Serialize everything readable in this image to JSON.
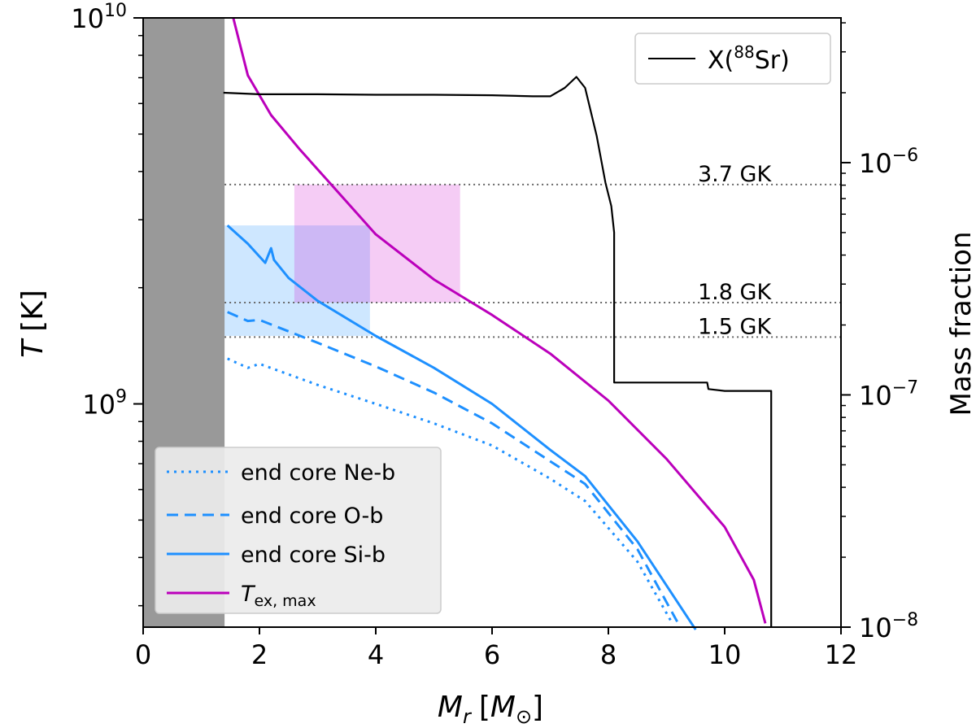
{
  "chart_data": {
    "type": "line",
    "xlabel_symbol": "M",
    "xlabel_sub": "r",
    "xlabel_unit_open": "[",
    "xlabel_unit": "M",
    "xlabel_unit_sub": "⊙",
    "xlabel_unit_close": "]",
    "ylabel_symbol": "T",
    "ylabel_unit": "[K]",
    "y2label": "Mass fraction",
    "xlim": [
      0,
      12
    ],
    "ylim_log": [
      264000000.0,
      10000000000.0
    ],
    "y2lim_log": [
      1e-08,
      4.2e-06
    ],
    "x_ticks": [
      "0",
      "2",
      "4",
      "6",
      "8",
      "10",
      "12"
    ],
    "y_tick_labels": [
      {
        "value": 10000000000.0,
        "base": "10",
        "exp": "10"
      },
      {
        "value": 1000000000.0,
        "base": "10",
        "exp": "9"
      }
    ],
    "y2_tick_labels": [
      {
        "value": 1e-06,
        "base": "10",
        "exp": "−6"
      },
      {
        "value": 1e-07,
        "base": "10",
        "exp": "−7"
      },
      {
        "value": 1e-08,
        "base": "10",
        "exp": "−8"
      }
    ],
    "remnant_region": {
      "x": [
        0,
        1.4
      ],
      "color": "#999999"
    },
    "temperature_lines": [
      {
        "label": "3.7 GK",
        "value": 3700000000.0
      },
      {
        "label": "1.8 GK",
        "value": 1830000000.0
      },
      {
        "label": "1.5 GK",
        "value": 1490000000.0
      }
    ],
    "shaded_regions": [
      {
        "name": "blue",
        "x": [
          1.4,
          3.9
        ],
        "y": [
          1500000000.0,
          2900000000.0
        ],
        "color": "#1e90ff",
        "opacity": 0.22
      },
      {
        "name": "magenta",
        "x": [
          2.6,
          5.45
        ],
        "y": [
          1830000000.0,
          3700000000.0
        ],
        "color": "#cc00cc",
        "opacity": 0.2
      }
    ],
    "series": [
      {
        "name": "end core Ne-b",
        "axis": "left",
        "color": "#1e90ff",
        "style": "dotted",
        "points": [
          [
            1.45,
            1310000000.0
          ],
          [
            1.8,
            1240000000.0
          ],
          [
            2.0,
            1270000000.0
          ],
          [
            3.0,
            1120000000.0
          ],
          [
            4.0,
            1000000000.0
          ],
          [
            5.0,
            890000000.0
          ],
          [
            6.0,
            780000000.0
          ],
          [
            7.0,
            640000000.0
          ],
          [
            7.6,
            560000000.0
          ],
          [
            8.5,
            390000000.0
          ],
          [
            9.1,
            270000000.0
          ]
        ]
      },
      {
        "name": "end core O-b",
        "axis": "left",
        "color": "#1e90ff",
        "style": "dashed",
        "points": [
          [
            1.45,
            1730000000.0
          ],
          [
            1.8,
            1640000000.0
          ],
          [
            2.0,
            1650000000.0
          ],
          [
            3.0,
            1440000000.0
          ],
          [
            4.0,
            1250000000.0
          ],
          [
            5.0,
            1070000000.0
          ],
          [
            6.0,
            890000000.0
          ],
          [
            7.0,
            710000000.0
          ],
          [
            7.6,
            620000000.0
          ],
          [
            8.5,
            420000000.0
          ],
          [
            9.2,
            270000000.0
          ]
        ]
      },
      {
        "name": "end core Si-b",
        "axis": "left",
        "color": "#1e90ff",
        "style": "solid",
        "points": [
          [
            1.45,
            2900000000.0
          ],
          [
            1.8,
            2600000000.0
          ],
          [
            2.1,
            2320000000.0
          ],
          [
            2.2,
            2530000000.0
          ],
          [
            2.25,
            2360000000.0
          ],
          [
            2.5,
            2120000000.0
          ],
          [
            3.0,
            1850000000.0
          ],
          [
            4.0,
            1500000000.0
          ],
          [
            5.0,
            1240000000.0
          ],
          [
            6.0,
            1000000000.0
          ],
          [
            7.0,
            760000000.0
          ],
          [
            7.6,
            650000000.0
          ],
          [
            8.5,
            440000000.0
          ],
          [
            9.5,
            260000000.0
          ]
        ]
      },
      {
        "name": "T_ex,max",
        "axis": "left",
        "color": "#bb00bb",
        "style": "solid",
        "points": [
          [
            1.55,
            10000000000.0
          ],
          [
            1.8,
            7100000000.0
          ],
          [
            2.2,
            5600000000.0
          ],
          [
            2.7,
            4550000000.0
          ],
          [
            3.2,
            3750000000.0
          ],
          [
            4.0,
            2750000000.0
          ],
          [
            5.0,
            2100000000.0
          ],
          [
            6.0,
            1700000000.0
          ],
          [
            7.0,
            1350000000.0
          ],
          [
            8.0,
            1020000000.0
          ],
          [
            9.0,
            720000000.0
          ],
          [
            10.0,
            480000000.0
          ],
          [
            10.5,
            350000000.0
          ],
          [
            10.7,
            270000000.0
          ]
        ]
      },
      {
        "name": "X(88Sr)",
        "axis": "right",
        "color": "#000000",
        "style": "solid",
        "points": [
          [
            1.38,
            2e-06
          ],
          [
            2.0,
            1.97e-06
          ],
          [
            3.0,
            1.97e-06
          ],
          [
            4.0,
            1.96e-06
          ],
          [
            5.0,
            1.96e-06
          ],
          [
            6.0,
            1.95e-06
          ],
          [
            6.7,
            1.93e-06
          ],
          [
            7.0,
            1.93e-06
          ],
          [
            7.25,
            2.1e-06
          ],
          [
            7.45,
            2.34e-06
          ],
          [
            7.6,
            2.1e-06
          ],
          [
            7.8,
            1.3e-06
          ],
          [
            7.95,
            8.2e-07
          ],
          [
            8.05,
            6.5e-07
          ],
          [
            8.1,
            5e-07
          ],
          [
            8.1,
            1.13e-07
          ],
          [
            8.3,
            1.13e-07
          ],
          [
            9.0,
            1.13e-07
          ],
          [
            9.7,
            1.13e-07
          ],
          [
            9.72,
            1.06e-07
          ],
          [
            10.0,
            1.04e-07
          ],
          [
            10.8,
            1.04e-07
          ],
          [
            10.8,
            1e-08
          ]
        ]
      }
    ],
    "legend_left": {
      "position": "lower-left",
      "entries": [
        {
          "name": "end core Ne-b",
          "color": "#1e90ff",
          "style": "dotted"
        },
        {
          "name": "end core O-b",
          "color": "#1e90ff",
          "style": "dashed"
        },
        {
          "name": "end core Si-b",
          "color": "#1e90ff",
          "style": "solid"
        },
        {
          "name": "T_ex,max",
          "color": "#bb00bb",
          "style": "solid",
          "text_main": "T",
          "text_sub": "ex, max"
        }
      ]
    },
    "legend_right": {
      "position": "upper-right",
      "entry": {
        "name": "X(88Sr)",
        "prefix": "X(",
        "sup": "88",
        "suffix": "Sr)",
        "color": "#000000",
        "style": "solid"
      }
    }
  }
}
